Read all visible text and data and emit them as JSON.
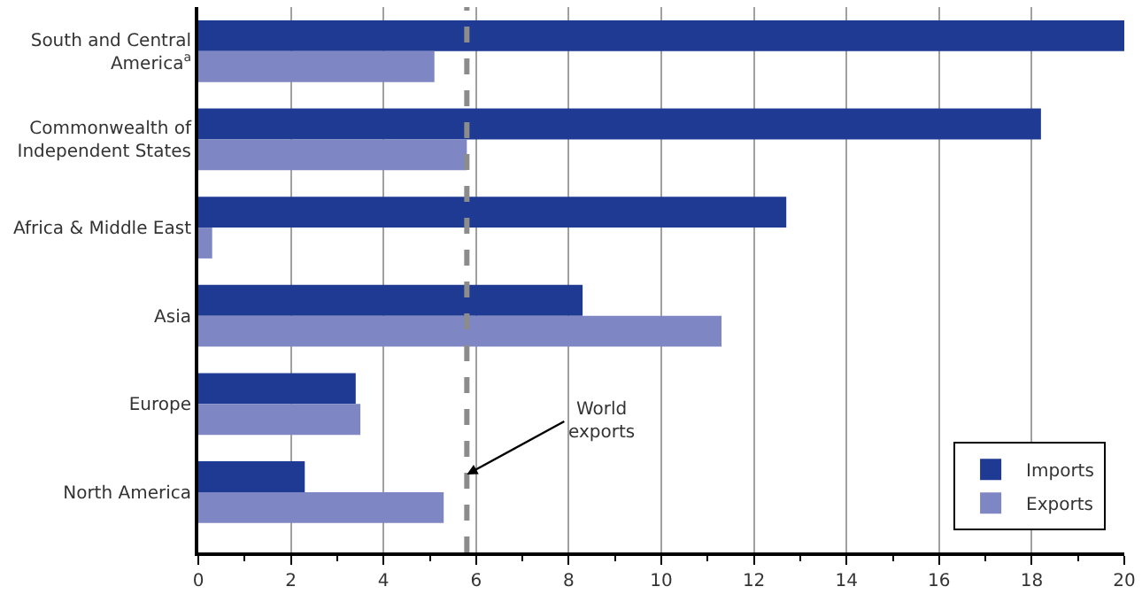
{
  "chart_data": {
    "type": "bar",
    "orientation": "horizontal",
    "categories": [
      "South and Central America$^{a}$",
      "Commonwealth of Independent States",
      "Africa & Middle East",
      "Asia",
      "Europe",
      "North America"
    ],
    "series": [
      {
        "name": "Imports",
        "color": "#1f3a93",
        "values": [
          20,
          18.2,
          12.7,
          8.3,
          3.4,
          2.3
        ]
      },
      {
        "name": "Exports",
        "color": "#7f86c4",
        "values": [
          5.1,
          5.8,
          0.3,
          11.3,
          3.5,
          5.3
        ]
      }
    ],
    "xlim": [
      0,
      20
    ],
    "xticks": [
      0,
      2,
      4,
      6,
      8,
      10,
      12,
      14,
      16,
      18,
      20
    ],
    "grid": "x",
    "legend": "bottom right",
    "ref_lines": [
      {
        "axis": "x",
        "value": 5.8,
        "label": "World exports",
        "color": "#8c8c8c",
        "line_style": "dashed"
      }
    ]
  }
}
